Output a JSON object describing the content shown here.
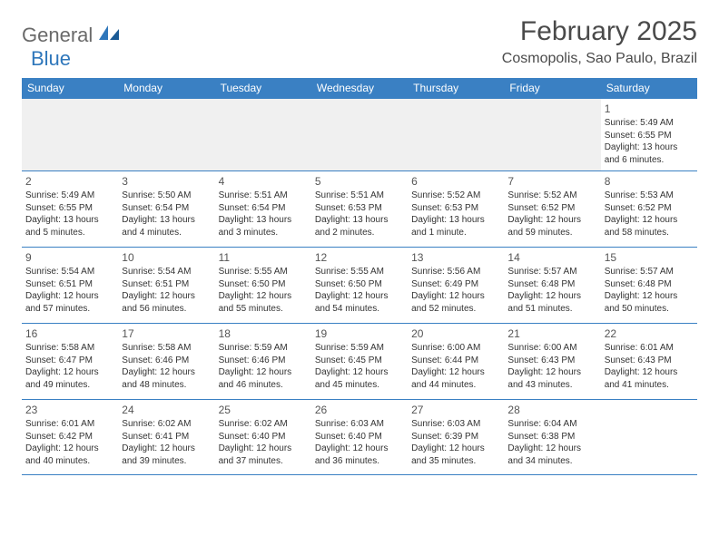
{
  "logo": {
    "general": "General",
    "blue": "Blue"
  },
  "title": "February 2025",
  "location": "Cosmopolis, Sao Paulo, Brazil",
  "colors": {
    "header_bg": "#3a80c3",
    "header_text": "#ffffff",
    "border": "#3a80c3",
    "shaded_bg": "#f0f0f0",
    "text": "#333333",
    "logo_gray": "#6a6a6a",
    "logo_blue": "#2f77bb"
  },
  "day_names": [
    "Sunday",
    "Monday",
    "Tuesday",
    "Wednesday",
    "Thursday",
    "Friday",
    "Saturday"
  ],
  "weeks": [
    [
      {
        "day": "",
        "sunrise": "",
        "sunset": "",
        "daylight": "",
        "shaded": true
      },
      {
        "day": "",
        "sunrise": "",
        "sunset": "",
        "daylight": "",
        "shaded": true
      },
      {
        "day": "",
        "sunrise": "",
        "sunset": "",
        "daylight": "",
        "shaded": true
      },
      {
        "day": "",
        "sunrise": "",
        "sunset": "",
        "daylight": "",
        "shaded": true
      },
      {
        "day": "",
        "sunrise": "",
        "sunset": "",
        "daylight": "",
        "shaded": true
      },
      {
        "day": "",
        "sunrise": "",
        "sunset": "",
        "daylight": "",
        "shaded": true
      },
      {
        "day": "1",
        "sunrise": "Sunrise: 5:49 AM",
        "sunset": "Sunset: 6:55 PM",
        "daylight": "Daylight: 13 hours and 6 minutes.",
        "shaded": false
      }
    ],
    [
      {
        "day": "2",
        "sunrise": "Sunrise: 5:49 AM",
        "sunset": "Sunset: 6:55 PM",
        "daylight": "Daylight: 13 hours and 5 minutes.",
        "shaded": false
      },
      {
        "day": "3",
        "sunrise": "Sunrise: 5:50 AM",
        "sunset": "Sunset: 6:54 PM",
        "daylight": "Daylight: 13 hours and 4 minutes.",
        "shaded": false
      },
      {
        "day": "4",
        "sunrise": "Sunrise: 5:51 AM",
        "sunset": "Sunset: 6:54 PM",
        "daylight": "Daylight: 13 hours and 3 minutes.",
        "shaded": false
      },
      {
        "day": "5",
        "sunrise": "Sunrise: 5:51 AM",
        "sunset": "Sunset: 6:53 PM",
        "daylight": "Daylight: 13 hours and 2 minutes.",
        "shaded": false
      },
      {
        "day": "6",
        "sunrise": "Sunrise: 5:52 AM",
        "sunset": "Sunset: 6:53 PM",
        "daylight": "Daylight: 13 hours and 1 minute.",
        "shaded": false
      },
      {
        "day": "7",
        "sunrise": "Sunrise: 5:52 AM",
        "sunset": "Sunset: 6:52 PM",
        "daylight": "Daylight: 12 hours and 59 minutes.",
        "shaded": false
      },
      {
        "day": "8",
        "sunrise": "Sunrise: 5:53 AM",
        "sunset": "Sunset: 6:52 PM",
        "daylight": "Daylight: 12 hours and 58 minutes.",
        "shaded": false
      }
    ],
    [
      {
        "day": "9",
        "sunrise": "Sunrise: 5:54 AM",
        "sunset": "Sunset: 6:51 PM",
        "daylight": "Daylight: 12 hours and 57 minutes.",
        "shaded": false
      },
      {
        "day": "10",
        "sunrise": "Sunrise: 5:54 AM",
        "sunset": "Sunset: 6:51 PM",
        "daylight": "Daylight: 12 hours and 56 minutes.",
        "shaded": false
      },
      {
        "day": "11",
        "sunrise": "Sunrise: 5:55 AM",
        "sunset": "Sunset: 6:50 PM",
        "daylight": "Daylight: 12 hours and 55 minutes.",
        "shaded": false
      },
      {
        "day": "12",
        "sunrise": "Sunrise: 5:55 AM",
        "sunset": "Sunset: 6:50 PM",
        "daylight": "Daylight: 12 hours and 54 minutes.",
        "shaded": false
      },
      {
        "day": "13",
        "sunrise": "Sunrise: 5:56 AM",
        "sunset": "Sunset: 6:49 PM",
        "daylight": "Daylight: 12 hours and 52 minutes.",
        "shaded": false
      },
      {
        "day": "14",
        "sunrise": "Sunrise: 5:57 AM",
        "sunset": "Sunset: 6:48 PM",
        "daylight": "Daylight: 12 hours and 51 minutes.",
        "shaded": false
      },
      {
        "day": "15",
        "sunrise": "Sunrise: 5:57 AM",
        "sunset": "Sunset: 6:48 PM",
        "daylight": "Daylight: 12 hours and 50 minutes.",
        "shaded": false
      }
    ],
    [
      {
        "day": "16",
        "sunrise": "Sunrise: 5:58 AM",
        "sunset": "Sunset: 6:47 PM",
        "daylight": "Daylight: 12 hours and 49 minutes.",
        "shaded": false
      },
      {
        "day": "17",
        "sunrise": "Sunrise: 5:58 AM",
        "sunset": "Sunset: 6:46 PM",
        "daylight": "Daylight: 12 hours and 48 minutes.",
        "shaded": false
      },
      {
        "day": "18",
        "sunrise": "Sunrise: 5:59 AM",
        "sunset": "Sunset: 6:46 PM",
        "daylight": "Daylight: 12 hours and 46 minutes.",
        "shaded": false
      },
      {
        "day": "19",
        "sunrise": "Sunrise: 5:59 AM",
        "sunset": "Sunset: 6:45 PM",
        "daylight": "Daylight: 12 hours and 45 minutes.",
        "shaded": false
      },
      {
        "day": "20",
        "sunrise": "Sunrise: 6:00 AM",
        "sunset": "Sunset: 6:44 PM",
        "daylight": "Daylight: 12 hours and 44 minutes.",
        "shaded": false
      },
      {
        "day": "21",
        "sunrise": "Sunrise: 6:00 AM",
        "sunset": "Sunset: 6:43 PM",
        "daylight": "Daylight: 12 hours and 43 minutes.",
        "shaded": false
      },
      {
        "day": "22",
        "sunrise": "Sunrise: 6:01 AM",
        "sunset": "Sunset: 6:43 PM",
        "daylight": "Daylight: 12 hours and 41 minutes.",
        "shaded": false
      }
    ],
    [
      {
        "day": "23",
        "sunrise": "Sunrise: 6:01 AM",
        "sunset": "Sunset: 6:42 PM",
        "daylight": "Daylight: 12 hours and 40 minutes.",
        "shaded": false
      },
      {
        "day": "24",
        "sunrise": "Sunrise: 6:02 AM",
        "sunset": "Sunset: 6:41 PM",
        "daylight": "Daylight: 12 hours and 39 minutes.",
        "shaded": false
      },
      {
        "day": "25",
        "sunrise": "Sunrise: 6:02 AM",
        "sunset": "Sunset: 6:40 PM",
        "daylight": "Daylight: 12 hours and 37 minutes.",
        "shaded": false
      },
      {
        "day": "26",
        "sunrise": "Sunrise: 6:03 AM",
        "sunset": "Sunset: 6:40 PM",
        "daylight": "Daylight: 12 hours and 36 minutes.",
        "shaded": false
      },
      {
        "day": "27",
        "sunrise": "Sunrise: 6:03 AM",
        "sunset": "Sunset: 6:39 PM",
        "daylight": "Daylight: 12 hours and 35 minutes.",
        "shaded": false
      },
      {
        "day": "28",
        "sunrise": "Sunrise: 6:04 AM",
        "sunset": "Sunset: 6:38 PM",
        "daylight": "Daylight: 12 hours and 34 minutes.",
        "shaded": false
      },
      {
        "day": "",
        "sunrise": "",
        "sunset": "",
        "daylight": "",
        "shaded": false
      }
    ]
  ]
}
